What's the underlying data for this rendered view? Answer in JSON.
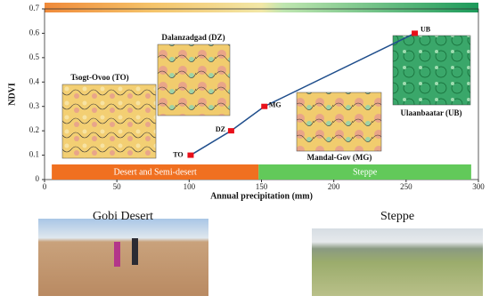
{
  "chart_data": {
    "type": "line",
    "x": [
      101,
      129,
      152,
      256
    ],
    "values": [
      0.1,
      0.2,
      0.3,
      0.6
    ],
    "point_labels": [
      "TO",
      "DZ",
      "MG",
      "UB"
    ],
    "color": "#1f4e8c",
    "marker_color": "#e8101a",
    "xlim": [
      0,
      300
    ],
    "xticks": [
      0,
      50,
      100,
      150,
      200,
      250,
      300
    ],
    "ylim": [
      0,
      0.7
    ],
    "yticks": [
      0,
      0.1,
      0.2,
      0.3,
      0.4,
      0.5,
      0.6,
      0.7
    ],
    "xlabel": "Annual precipitation (mm)",
    "ylabel": "NDVI",
    "zones": [
      {
        "label": "Desert and Semi-desert",
        "range": [
          5,
          148
        ],
        "color": "#f07020"
      },
      {
        "label": "Steppe",
        "range": [
          148,
          295
        ],
        "color": "#62c95a"
      }
    ],
    "annotations": [
      "Tsogt-Ovoo (TO)",
      "Dalanzadgad (DZ)",
      "Mandal-Gov (MG)",
      "Ulaanbaatar (UB)"
    ]
  },
  "photos": [
    "Gobi Desert",
    "Steppe"
  ]
}
